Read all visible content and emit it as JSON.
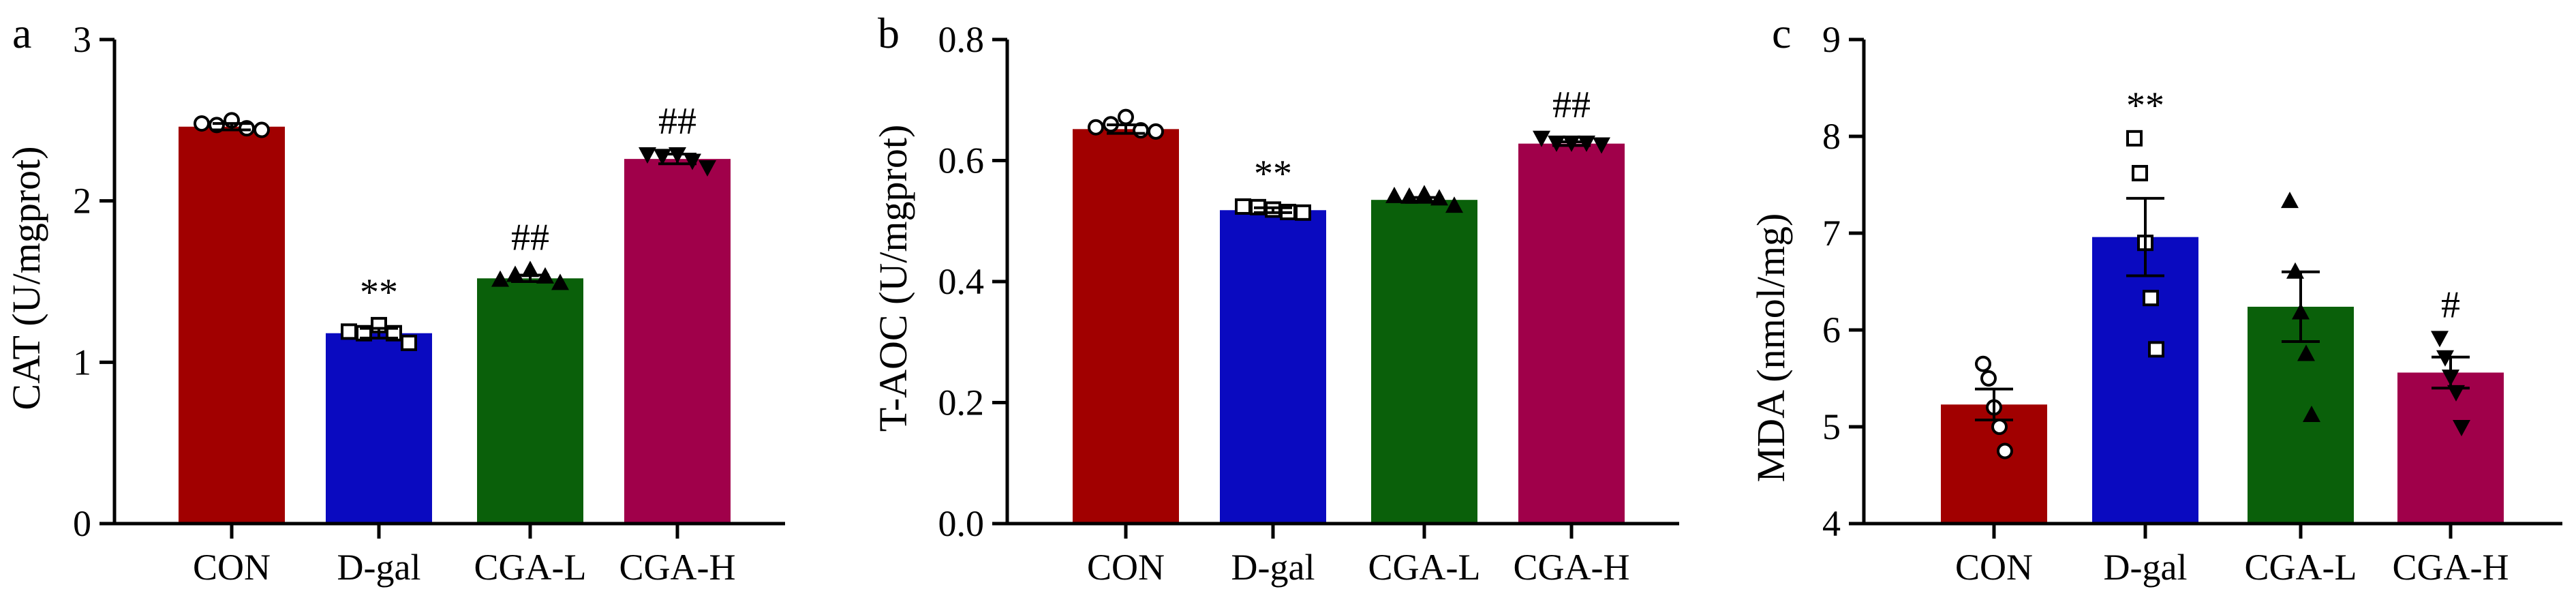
{
  "chart_data": [
    {
      "type": "bar",
      "panel_label": "a",
      "title": "",
      "xlabel": "",
      "ylabel": "CAT (U/mgprot)",
      "ylim": [
        0,
        3
      ],
      "yticks": [
        0,
        1,
        2,
        3
      ],
      "ytick_labels": [
        "0",
        "1",
        "2",
        "3"
      ],
      "categories": [
        "CON",
        "D-gal",
        "CGA-L",
        "CGA-H"
      ],
      "values": [
        2.46,
        1.18,
        1.52,
        2.26
      ],
      "errors": [
        0.02,
        0.03,
        0.02,
        0.03
      ],
      "points": [
        [
          2.48,
          2.47,
          2.5,
          2.45,
          2.44
        ],
        [
          1.19,
          1.18,
          1.23,
          1.18,
          1.12
        ],
        [
          1.51,
          1.54,
          1.57,
          1.53,
          1.49
        ],
        [
          2.29,
          2.28,
          2.29,
          2.25,
          2.21
        ]
      ],
      "markers": [
        "circle",
        "square",
        "triangle-up",
        "triangle-down"
      ],
      "annotations": [
        "",
        "**",
        "##",
        "##"
      ]
    },
    {
      "type": "bar",
      "panel_label": "b",
      "title": "",
      "xlabel": "",
      "ylabel": "T-AOC (U/mgprot)",
      "ylim": [
        0,
        0.8
      ],
      "yticks": [
        0,
        0.2,
        0.4,
        0.6,
        0.8
      ],
      "ytick_labels": [
        "0.0",
        "0.2",
        "0.4",
        "0.6",
        "0.8"
      ],
      "categories": [
        "CON",
        "D-gal",
        "CGA-L",
        "CGA-H"
      ],
      "values": [
        0.652,
        0.518,
        0.535,
        0.628
      ],
      "errors": [
        0.007,
        0.004,
        0.004,
        0.003
      ],
      "points": [
        [
          0.655,
          0.66,
          0.672,
          0.65,
          0.648
        ],
        [
          0.524,
          0.523,
          0.519,
          0.515,
          0.514
        ],
        [
          0.541,
          0.54,
          0.544,
          0.537,
          0.525
        ],
        [
          0.638,
          0.63,
          0.63,
          0.63,
          0.627
        ]
      ],
      "markers": [
        "circle",
        "square",
        "triangle-up",
        "triangle-down"
      ],
      "annotations": [
        "",
        "**",
        "",
        "##"
      ]
    },
    {
      "type": "bar",
      "panel_label": "c",
      "title": "",
      "xlabel": "",
      "ylabel": "MDA (nmol/mg)",
      "ylim": [
        4,
        9
      ],
      "yticks": [
        4,
        5,
        6,
        7,
        8,
        9
      ],
      "ytick_labels": [
        "4",
        "5",
        "6",
        "7",
        "8",
        "9"
      ],
      "categories": [
        "CON",
        "D-gal",
        "CGA-L",
        "CGA-H"
      ],
      "values": [
        5.23,
        6.96,
        6.24,
        5.56
      ],
      "errors": [
        0.16,
        0.4,
        0.36,
        0.16
      ],
      "points": [
        [
          5.65,
          5.5,
          5.2,
          5.0,
          4.75
        ],
        [
          7.98,
          7.62,
          6.9,
          6.33,
          5.8
        ],
        [
          7.33,
          6.6,
          6.18,
          5.75,
          5.12
        ],
        [
          5.92,
          5.72,
          5.52,
          5.36,
          5.0
        ]
      ],
      "markers": [
        "circle",
        "square",
        "triangle-up",
        "triangle-down"
      ],
      "annotations": [
        "",
        "**",
        "",
        "#"
      ]
    }
  ],
  "colors": [
    "#a10000",
    "#0a0ac0",
    "#0a600a",
    "#a0004a"
  ]
}
